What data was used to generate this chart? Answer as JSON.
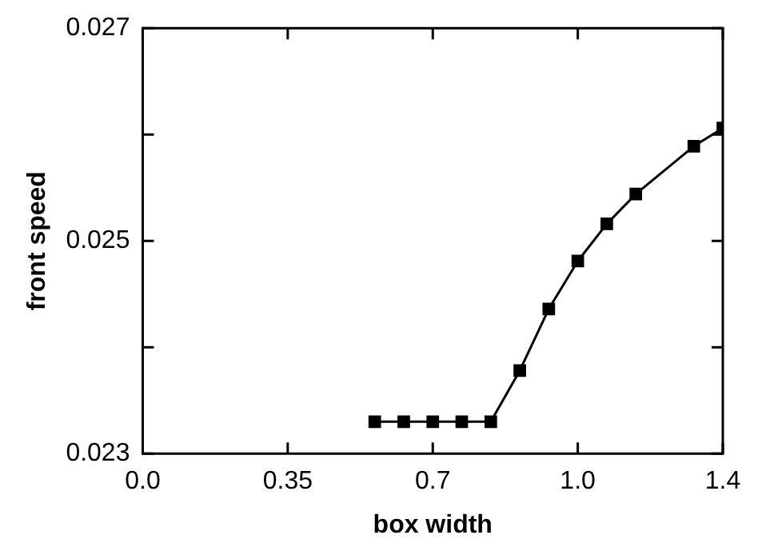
{
  "chart_data": {
    "type": "line",
    "xlabel": "box width",
    "ylabel": "front speed",
    "x": [
      0.56,
      0.63,
      0.7,
      0.77,
      0.84,
      0.91,
      0.98,
      1.05,
      1.12,
      1.19,
      1.33,
      1.4
    ],
    "series": [
      {
        "color": "#000000",
        "values": [
          0.0233,
          0.0233,
          0.0233,
          0.0233,
          0.0233,
          0.02378,
          0.02436,
          0.02481,
          0.02516,
          0.02544,
          0.02589,
          0.02606
        ]
      }
    ],
    "xlim": [
      0,
      1.4
    ],
    "xticks": [
      {
        "value": 0,
        "label": "0.0"
      },
      0.35,
      0.7,
      {
        "value": 1.05,
        "label": "1.0"
      },
      1.4
    ],
    "ylim": [
      0.023,
      0.027
    ],
    "yticks": [
      0.023,
      {
        "value": 0.024,
        "label": null
      },
      0.025,
      {
        "value": 0.026,
        "label": null
      },
      0.027
    ],
    "grid": false,
    "legend": false,
    "marker": "square",
    "line_style": "solid"
  }
}
